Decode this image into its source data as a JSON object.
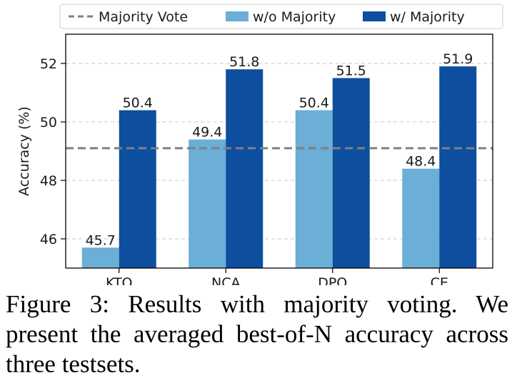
{
  "chart_data": {
    "type": "bar",
    "categories": [
      "KTO",
      "NCA",
      "DPO",
      "CE"
    ],
    "series": [
      {
        "name": "w/o Majority",
        "color": "#6baed6",
        "values": [
          45.7,
          49.4,
          50.4,
          48.4
        ]
      },
      {
        "name": "w/ Majority",
        "color": "#0d4f9e",
        "values": [
          50.4,
          51.8,
          51.5,
          51.9
        ]
      }
    ],
    "reference_line": {
      "name": "Majority Vote",
      "value": 49.1,
      "color": "#808080",
      "style": "dashed"
    },
    "ylabel": "Accuracy (%)",
    "xlabel": "",
    "ylim": [
      45.0,
      53.0
    ],
    "yticks": [
      46,
      48,
      50,
      52
    ],
    "grid": "horizontal dashed",
    "legend_position": "top"
  },
  "caption": "Figure 3: Results with majority voting. We present the averaged best-of-N accuracy across three testsets."
}
